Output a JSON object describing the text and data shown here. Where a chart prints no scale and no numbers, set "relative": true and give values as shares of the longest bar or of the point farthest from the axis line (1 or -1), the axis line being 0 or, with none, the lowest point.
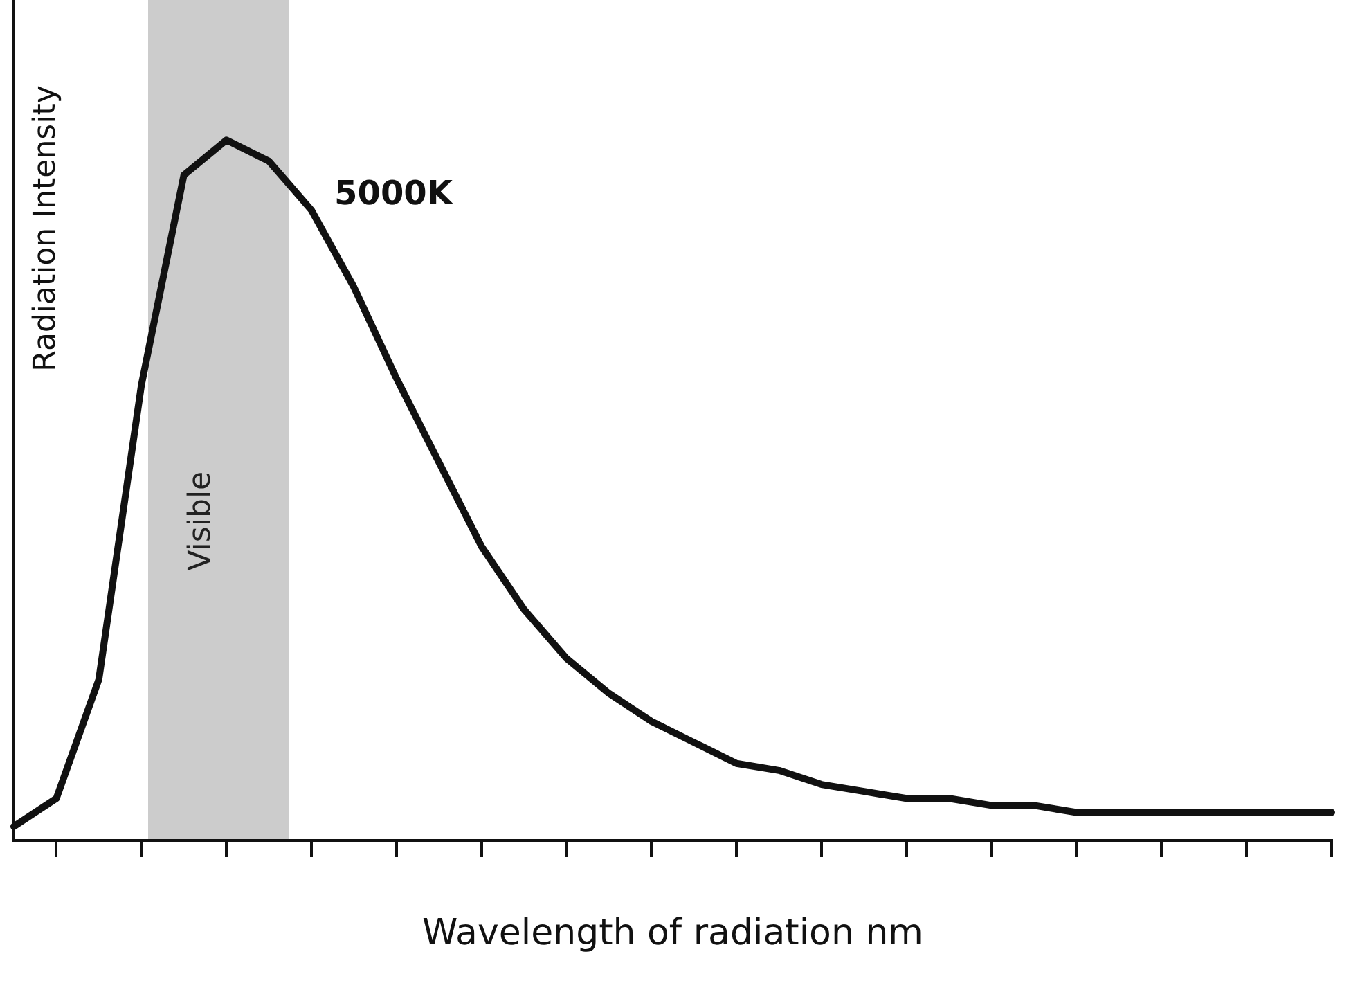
{
  "chart_data": {
    "type": "line",
    "xlabel": "Wavelength of radiation nm",
    "ylabel": "Radiation Intensity",
    "relative": true,
    "grid": false,
    "legend": false,
    "marker": "none",
    "line_style": "solid",
    "annotations": [
      "Visible"
    ],
    "categories": [
      null,
      null,
      null,
      null,
      null,
      null,
      null,
      null,
      null,
      null,
      null,
      null,
      null,
      null,
      null,
      null,
      null,
      null,
      null,
      null,
      null,
      null,
      null,
      null,
      null,
      null,
      null,
      null,
      null,
      null,
      null,
      null
    ],
    "series": [
      {
        "name": "5000K",
        "color": "#111111",
        "values": [
          0.02,
          0.06,
          0.23,
          0.65,
          0.95,
          1,
          0.97,
          0.9,
          0.79,
          0.66,
          0.54,
          0.42,
          0.33,
          0.26,
          0.21,
          0.17,
          0.14,
          0.11,
          0.1,
          0.08,
          0.07,
          0.06,
          0.06,
          0.05,
          0.05,
          0.04,
          0.04,
          0.04,
          0.04,
          0.04,
          0.04,
          0.04
        ]
      }
    ]
  }
}
